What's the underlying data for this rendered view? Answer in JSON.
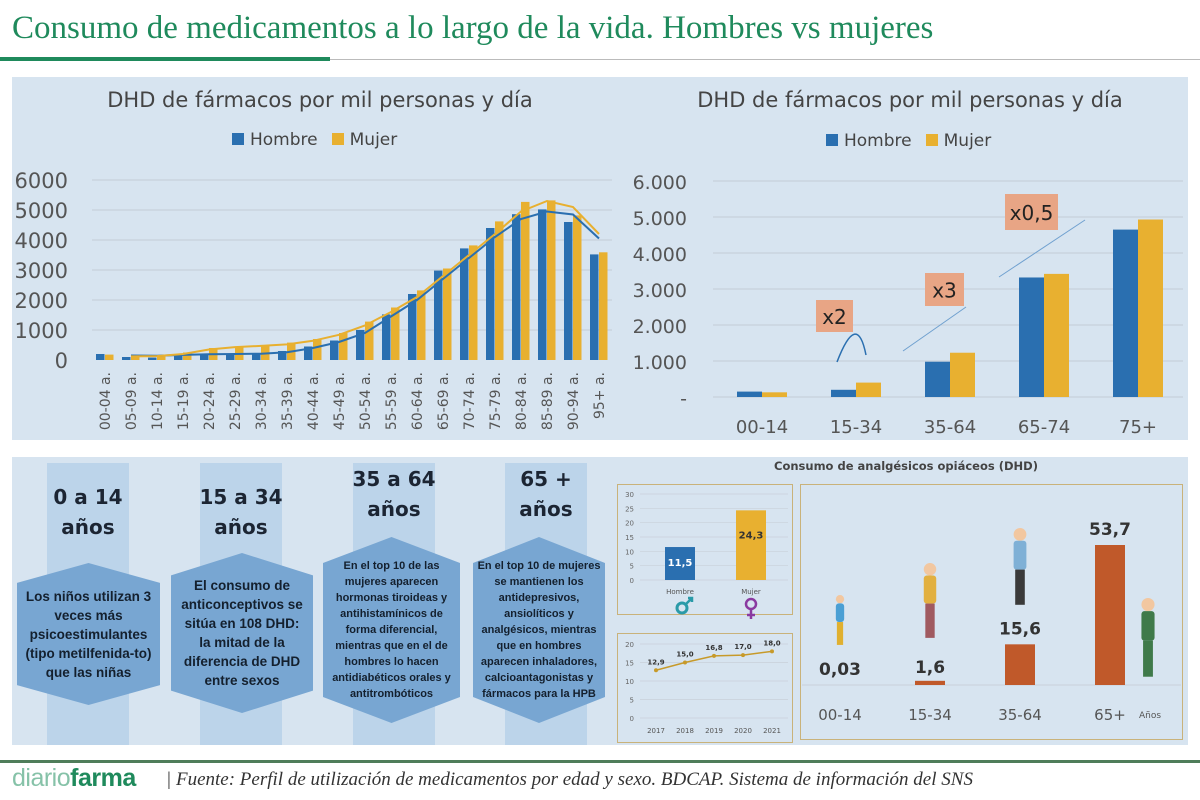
{
  "header": {
    "title": "Consumo de medicamentos a lo largo de la vida. Hombres vs mujeres"
  },
  "colors": {
    "hombre": "#2a6fb0",
    "mujer": "#e8b030",
    "opioid": "#c0592a",
    "callout": "#78a6d2",
    "brand": "#1f8a5c"
  },
  "chart_data": [
    {
      "type": "bar",
      "title": "DHD de fármacos por mil personas y día",
      "legend": "top",
      "grid": true,
      "categories": [
        "00-04 a.",
        "05-09 a.",
        "10-14 a.",
        "15-19 a.",
        "20-24 a.",
        "25-29 a.",
        "30-34 a.",
        "35-39 a.",
        "40-44 a.",
        "45-49 a.",
        "50-54 a.",
        "55-59 a.",
        "60-64 a.",
        "65-69 a.",
        "70-74 a.",
        "75-79 a.",
        "80-84 a.",
        "85-89 a.",
        "90-94 a.",
        "95+ a."
      ],
      "yticks": [
        "0",
        "1000",
        "2000",
        "3000",
        "4000",
        "5000",
        "6000"
      ],
      "ylim": [
        0,
        6000
      ],
      "series": [
        {
          "name": "Hombre",
          "values": [
            200,
            100,
            80,
            150,
            180,
            200,
            220,
            300,
            450,
            650,
            1000,
            1520,
            2200,
            2980,
            3720,
            4400,
            4860,
            5020,
            4600,
            3520
          ],
          "trend": [
            null,
            150,
            140,
            170,
            190,
            200,
            210,
            260,
            400,
            600,
            900,
            1450,
            2000,
            2700,
            3400,
            4100,
            4700,
            4950,
            4850,
            4050
          ]
        },
        {
          "name": "Mujer",
          "values": [
            180,
            130,
            120,
            250,
            400,
            450,
            480,
            580,
            700,
            900,
            1280,
            1750,
            2320,
            3050,
            3820,
            4620,
            5270,
            5320,
            4820,
            3590
          ],
          "trend": [
            null,
            120,
            130,
            200,
            350,
            430,
            470,
            520,
            640,
            840,
            1150,
            1600,
            2100,
            2800,
            3500,
            4200,
            4950,
            5300,
            5100,
            4200
          ]
        }
      ]
    },
    {
      "type": "bar",
      "title": "DHD de fármacos por mil personas y día",
      "legend": "top",
      "grid": true,
      "categories": [
        "00-14",
        "15-34",
        "35-64",
        "65-74",
        "75+"
      ],
      "yticks": [
        "-",
        "1.000",
        "2.000",
        "3.000",
        "4.000",
        "5.000",
        "6.000"
      ],
      "ylim": [
        0,
        6000
      ],
      "series": [
        {
          "name": "Hombre",
          "values": [
            150,
            200,
            980,
            3320,
            4650
          ]
        },
        {
          "name": "Mujer",
          "values": [
            130,
            400,
            1230,
            3420,
            4930
          ]
        }
      ],
      "annotations": [
        "x2",
        "x3",
        "x0,5"
      ]
    },
    {
      "type": "bar",
      "categories": [
        "Hombre",
        "Mujer"
      ],
      "values": [
        11.5,
        24.3
      ],
      "labels": [
        "11,5",
        "24,3"
      ],
      "yticks": [
        "0",
        "5",
        "10",
        "15",
        "20",
        "25",
        "30"
      ],
      "ylim": [
        0,
        30
      ]
    },
    {
      "type": "line",
      "x": [
        "2017",
        "2018",
        "2019",
        "2020",
        "2021"
      ],
      "values": [
        12.9,
        15.0,
        16.8,
        17.0,
        18.0
      ],
      "labels": [
        "12,9",
        "15,0",
        "16,8",
        "17,0",
        "18,0"
      ],
      "yticks": [
        "0",
        "5",
        "10",
        "15",
        "20"
      ],
      "ylim": [
        0,
        20
      ]
    },
    {
      "type": "bar",
      "title": "Consumo de analgésicos opiáceos (DHD)",
      "categories": [
        "00-14",
        "15-34",
        "35-64",
        "65+"
      ],
      "values": [
        0.03,
        1.6,
        15.6,
        53.7
      ],
      "labels": [
        "0,03",
        "1,6",
        "15,6",
        "53,7"
      ],
      "xlabel": "Años"
    }
  ],
  "stages": [
    {
      "age1": "0 a 14",
      "age2": "años",
      "text": "Los niños utilizan 3 veces más psicoestimulantes (tipo metilfenida-to) que las niñas"
    },
    {
      "age1": "15 a 34",
      "age2": "años",
      "text": "El consumo de anticonceptivos se sitúa en 108 DHD: la mitad de la diferencia de DHD entre sexos"
    },
    {
      "age1": "35 a 64",
      "age2": "años",
      "text": "En el top 10 de las mujeres aparecen hormonas tiroideas y antihistamínicos de forma diferencial, mientras que en el de hombres lo hacen antidiabéticos orales y antitrombóticos"
    },
    {
      "age1": "65 +",
      "age2": "años",
      "text": "En el top 10 de mujeres se mantienen los antidepresivos, ansiolíticos y analgésicos, mientras que en hombres aparecen inhaladores, calcioantagonistas y fármacos para la HPB"
    }
  ],
  "icons": {
    "male": "male-symbol-icon",
    "female": "female-symbol-icon"
  },
  "footer": {
    "logo_a": "diario",
    "logo_b": "farma",
    "source": "| Fuente: Perfil de utilización de medicamentos por edad y sexo. BDCAP. Sistema de información del SNS"
  }
}
